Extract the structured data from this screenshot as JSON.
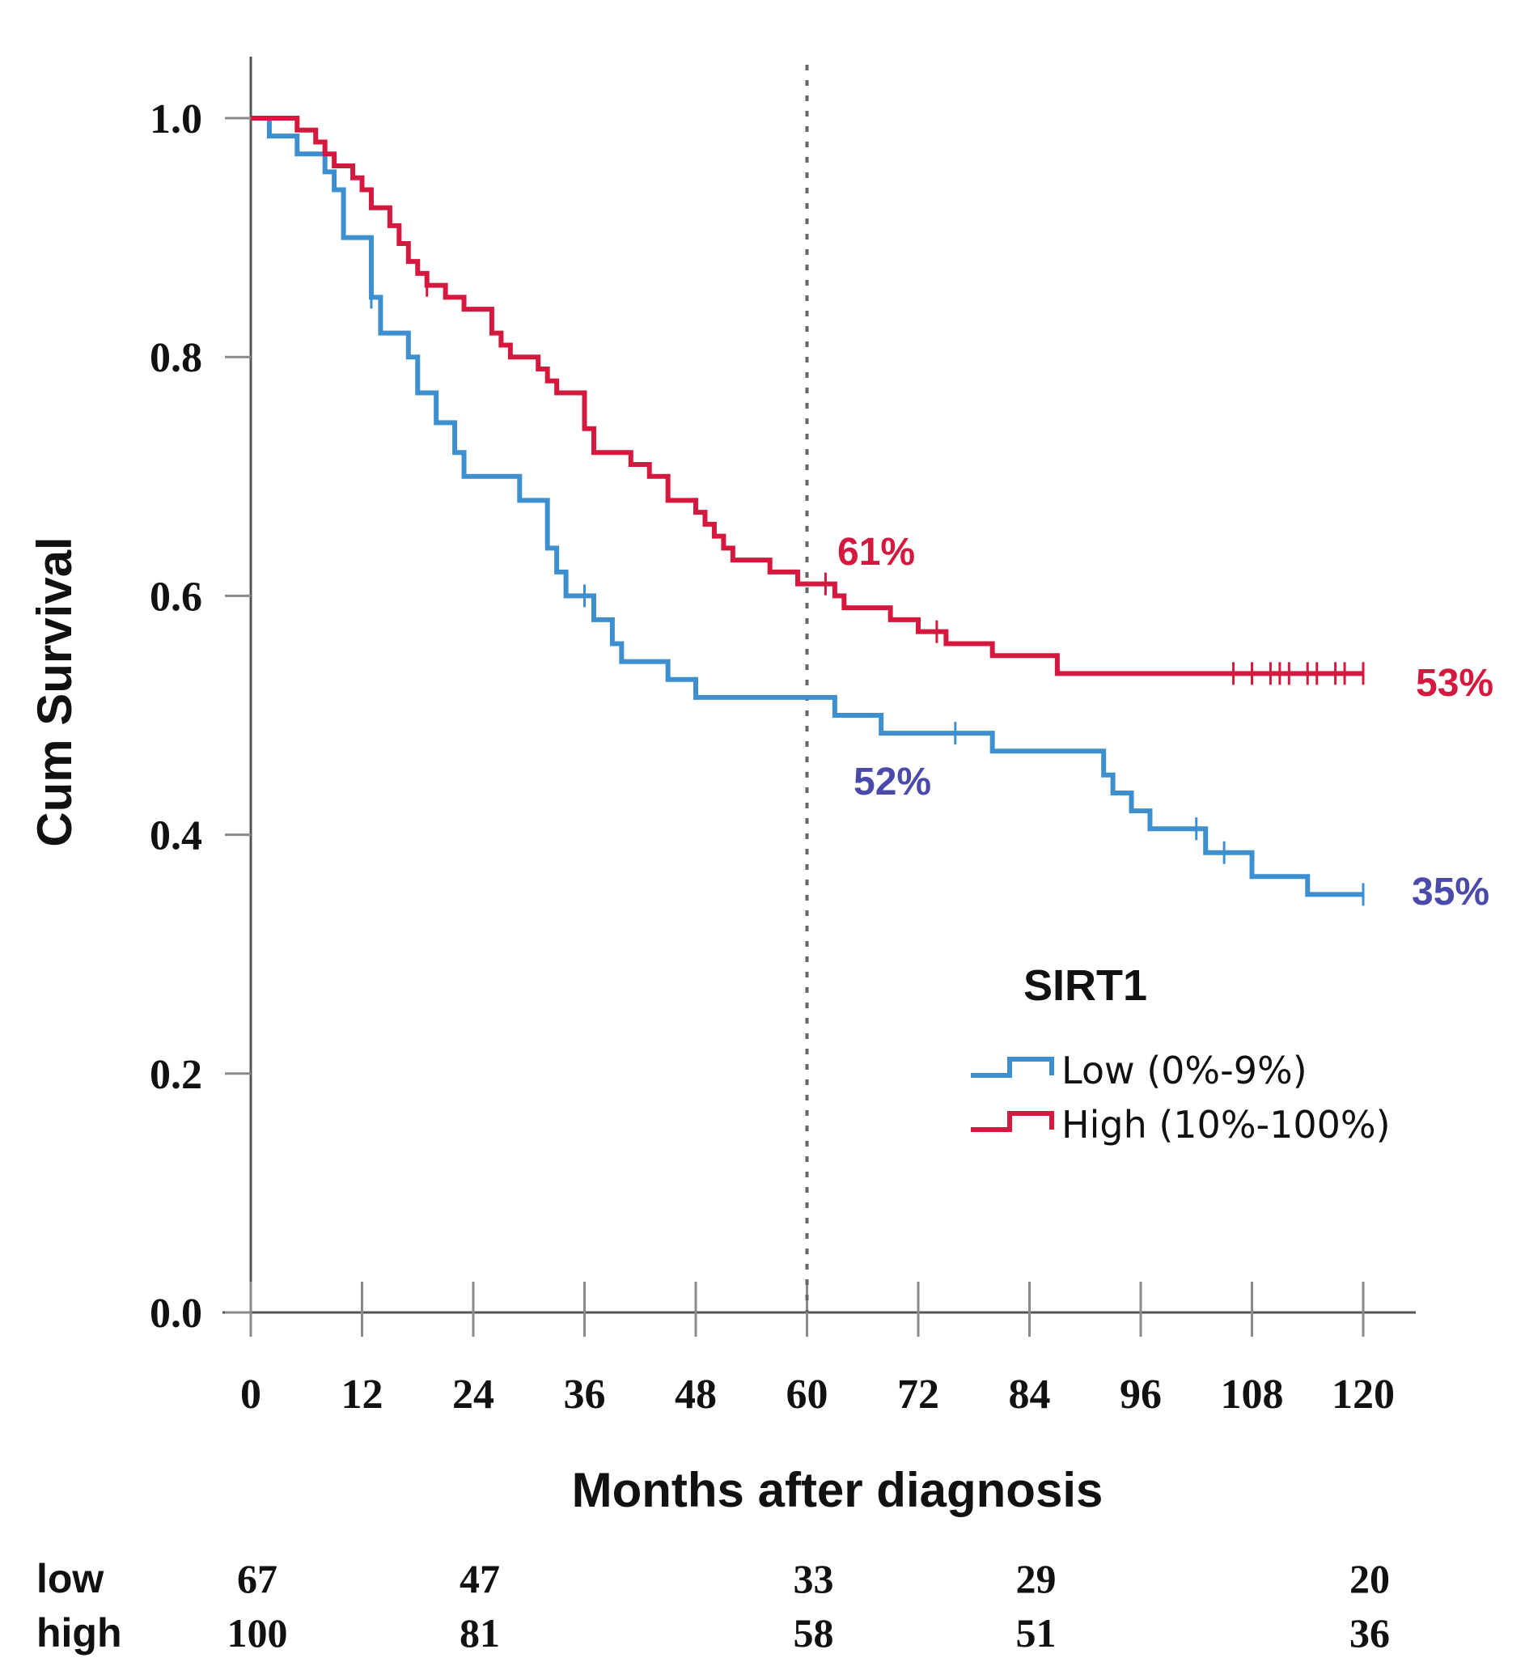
{
  "chart_data": {
    "type": "line",
    "subtype": "kaplan-meier",
    "title": "",
    "xlabel": "Months after diagnosis",
    "ylabel": "Cum Survival",
    "xlim": [
      0,
      120
    ],
    "ylim": [
      0,
      1.0
    ],
    "x_ticks": [
      0,
      12,
      24,
      36,
      48,
      60,
      72,
      84,
      96,
      108,
      120
    ],
    "x_tick_labels": [
      "0",
      "12",
      "24",
      "36",
      "48",
      "60",
      "72",
      "84",
      "96",
      "108",
      "120"
    ],
    "y_ticks": [
      0,
      0.2,
      0.4,
      0.6,
      0.8,
      1.0
    ],
    "y_tick_labels": [
      "0.0",
      "0.2",
      "0.4",
      "0.6",
      "0.8",
      "1.0"
    ],
    "reference_line_x": 60,
    "legend": {
      "title": "SIRT1",
      "position": "center-right",
      "entries": [
        "Low (0%-9%)",
        "High (10%-100%)"
      ]
    },
    "series": [
      {
        "name": "Low (0%-9%)",
        "color": "#3d8fd0",
        "steps": [
          [
            0,
            1.0
          ],
          [
            2,
            0.985
          ],
          [
            5,
            0.97
          ],
          [
            8,
            0.955
          ],
          [
            9,
            0.94
          ],
          [
            10,
            0.9
          ],
          [
            13,
            0.85
          ],
          [
            14,
            0.82
          ],
          [
            17,
            0.8
          ],
          [
            18,
            0.77
          ],
          [
            20,
            0.745
          ],
          [
            22,
            0.72
          ],
          [
            23,
            0.7
          ],
          [
            29,
            0.68
          ],
          [
            32,
            0.64
          ],
          [
            33,
            0.62
          ],
          [
            34,
            0.6
          ],
          [
            37,
            0.58
          ],
          [
            39,
            0.56
          ],
          [
            40,
            0.545
          ],
          [
            45,
            0.53
          ],
          [
            48,
            0.515
          ],
          [
            63,
            0.5
          ],
          [
            68,
            0.485
          ],
          [
            80,
            0.47
          ],
          [
            92,
            0.45
          ],
          [
            93,
            0.435
          ],
          [
            95,
            0.42
          ],
          [
            97,
            0.405
          ],
          [
            103,
            0.385
          ],
          [
            108,
            0.365
          ],
          [
            114,
            0.35
          ],
          [
            120,
            0.35
          ]
        ],
        "censor_times": [
          13,
          36,
          76,
          102,
          105,
          120
        ],
        "annotations": [
          {
            "x": 60,
            "label": "52%",
            "color": "#4a4aaa"
          },
          {
            "x": 120,
            "label": "35%",
            "color": "#4a4aaa"
          }
        ]
      },
      {
        "name": "High (10%-100%)",
        "color": "#d4183e",
        "steps": [
          [
            0,
            1.0
          ],
          [
            5,
            0.99
          ],
          [
            7,
            0.98
          ],
          [
            8,
            0.97
          ],
          [
            9,
            0.96
          ],
          [
            11,
            0.95
          ],
          [
            12,
            0.94
          ],
          [
            13,
            0.925
          ],
          [
            15,
            0.91
          ],
          [
            16,
            0.895
          ],
          [
            17,
            0.88
          ],
          [
            18,
            0.87
          ],
          [
            19,
            0.86
          ],
          [
            21,
            0.85
          ],
          [
            23,
            0.84
          ],
          [
            26,
            0.82
          ],
          [
            27,
            0.81
          ],
          [
            28,
            0.8
          ],
          [
            31,
            0.79
          ],
          [
            32,
            0.78
          ],
          [
            33,
            0.77
          ],
          [
            36,
            0.74
          ],
          [
            37,
            0.72
          ],
          [
            41,
            0.71
          ],
          [
            43,
            0.7
          ],
          [
            45,
            0.68
          ],
          [
            48,
            0.67
          ],
          [
            49,
            0.66
          ],
          [
            50,
            0.65
          ],
          [
            51,
            0.64
          ],
          [
            52,
            0.63
          ],
          [
            56,
            0.62
          ],
          [
            59,
            0.61
          ],
          [
            63,
            0.6
          ],
          [
            64,
            0.59
          ],
          [
            69,
            0.58
          ],
          [
            72,
            0.57
          ],
          [
            75,
            0.56
          ],
          [
            80,
            0.55
          ],
          [
            87,
            0.535
          ],
          [
            120,
            0.535
          ]
        ],
        "censor_times": [
          19,
          62,
          74,
          106,
          108,
          110,
          111,
          112,
          114,
          115,
          117,
          118,
          120
        ],
        "annotations": [
          {
            "x": 60,
            "label": "61%",
            "color": "#d4183e"
          },
          {
            "x": 120,
            "label": "53%",
            "color": "#d4183e"
          }
        ]
      }
    ],
    "risk_table": {
      "rows": [
        {
          "label": "low",
          "times": [
            0,
            24,
            60,
            84,
            120
          ],
          "values": [
            "67",
            "47",
            "33",
            "29",
            "20"
          ]
        },
        {
          "label": "high",
          "times": [
            0,
            24,
            60,
            84,
            120
          ],
          "values": [
            "100",
            "81",
            "58",
            "51",
            "36"
          ]
        }
      ]
    }
  }
}
